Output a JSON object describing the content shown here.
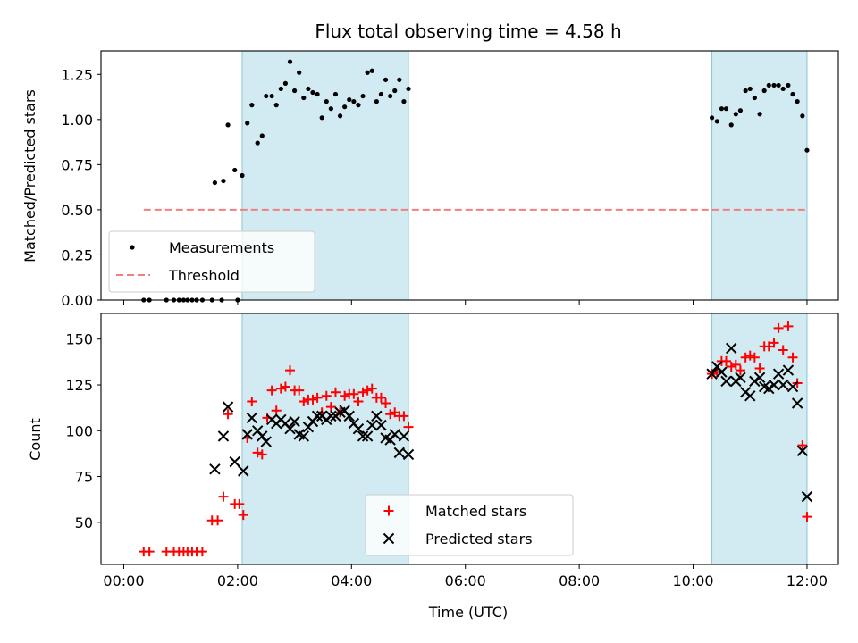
{
  "chart_data": {
    "title": "Flux total observing time = 4.58 h",
    "xlabel": "Time (UTC)",
    "xlim_hours": [
      -0.4,
      12.55
    ],
    "xticks": [
      {
        "value": 0,
        "label": "00:00"
      },
      {
        "value": 2,
        "label": "02:00"
      },
      {
        "value": 4,
        "label": "04:00"
      },
      {
        "value": 6,
        "label": "06:00"
      },
      {
        "value": 8,
        "label": "08:00"
      },
      {
        "value": 10,
        "label": "10:00"
      },
      {
        "value": 12,
        "label": "12:00"
      }
    ],
    "shaded_spans_hours": [
      [
        2.08,
        5.0
      ],
      [
        10.33,
        12.0
      ]
    ],
    "shade_color": "#add8e6",
    "panels": [
      {
        "type": "scatter",
        "ylabel": "Matched/Predicted stars",
        "ylim": [
          0,
          1.38
        ],
        "yticks": [
          {
            "value": 0,
            "label": "0.00"
          },
          {
            "value": 0.25,
            "label": "0.25"
          },
          {
            "value": 0.5,
            "label": "0.50"
          },
          {
            "value": 0.75,
            "label": "0.75"
          },
          {
            "value": 1.0,
            "label": "1.00"
          },
          {
            "value": 1.25,
            "label": "1.25"
          }
        ],
        "legend": {
          "position": "lower-left",
          "entries": [
            "Measurements",
            "Threshold"
          ]
        },
        "threshold": {
          "name": "Threshold",
          "y": 0.5,
          "x_range": [
            0.35,
            12.0
          ],
          "color": "#f08080"
        },
        "series": [
          {
            "name": "Measurements",
            "marker": "dot",
            "color": "#000000",
            "points": [
              [
                0.35,
                0
              ],
              [
                0.45,
                0
              ],
              [
                0.75,
                0
              ],
              [
                0.88,
                0
              ],
              [
                0.97,
                0
              ],
              [
                1.05,
                0
              ],
              [
                1.12,
                0
              ],
              [
                1.2,
                0
              ],
              [
                1.28,
                0
              ],
              [
                1.38,
                0
              ],
              [
                1.55,
                0
              ],
              [
                1.72,
                0
              ],
              [
                2.0,
                0
              ],
              [
                1.6,
                0.65
              ],
              [
                1.75,
                0.66
              ],
              [
                1.83,
                0.97
              ],
              [
                1.95,
                0.72
              ],
              [
                2.08,
                0.69
              ],
              [
                2.17,
                0.98
              ],
              [
                2.25,
                1.08
              ],
              [
                2.35,
                0.87
              ],
              [
                2.43,
                0.91
              ],
              [
                2.5,
                1.13
              ],
              [
                2.6,
                1.13
              ],
              [
                2.68,
                1.08
              ],
              [
                2.76,
                1.17
              ],
              [
                2.84,
                1.2
              ],
              [
                2.92,
                1.32
              ],
              [
                3.0,
                1.16
              ],
              [
                3.08,
                1.26
              ],
              [
                3.16,
                1.12
              ],
              [
                3.24,
                1.17
              ],
              [
                3.32,
                1.15
              ],
              [
                3.4,
                1.14
              ],
              [
                3.48,
                1.01
              ],
              [
                3.56,
                1.1
              ],
              [
                3.64,
                1.06
              ],
              [
                3.72,
                1.14
              ],
              [
                3.8,
                1.02
              ],
              [
                3.88,
                1.07
              ],
              [
                3.96,
                1.11
              ],
              [
                4.04,
                1.1
              ],
              [
                4.12,
                1.08
              ],
              [
                4.2,
                1.13
              ],
              [
                4.28,
                1.26
              ],
              [
                4.36,
                1.27
              ],
              [
                4.44,
                1.1
              ],
              [
                4.52,
                1.14
              ],
              [
                4.6,
                1.22
              ],
              [
                4.68,
                1.13
              ],
              [
                4.76,
                1.16
              ],
              [
                4.84,
                1.22
              ],
              [
                4.92,
                1.1
              ],
              [
                5.0,
                1.17
              ],
              [
                10.33,
                1.01
              ],
              [
                10.42,
                0.99
              ],
              [
                10.5,
                1.06
              ],
              [
                10.58,
                1.06
              ],
              [
                10.67,
                0.97
              ],
              [
                10.75,
                1.03
              ],
              [
                10.83,
                1.05
              ],
              [
                10.92,
                1.16
              ],
              [
                11.0,
                1.17
              ],
              [
                11.08,
                1.12
              ],
              [
                11.17,
                1.03
              ],
              [
                11.25,
                1.16
              ],
              [
                11.33,
                1.19
              ],
              [
                11.42,
                1.19
              ],
              [
                11.5,
                1.19
              ],
              [
                11.58,
                1.17
              ],
              [
                11.67,
                1.19
              ],
              [
                11.75,
                1.14
              ],
              [
                11.83,
                1.1
              ],
              [
                11.92,
                1.02
              ],
              [
                12.0,
                0.83
              ]
            ]
          }
        ]
      },
      {
        "type": "scatter",
        "ylabel": "Count",
        "ylim": [
          27,
          164
        ],
        "yticks": [
          {
            "value": 50,
            "label": "50"
          },
          {
            "value": 75,
            "label": "75"
          },
          {
            "value": 100,
            "label": "100"
          },
          {
            "value": 125,
            "label": "125"
          },
          {
            "value": 150,
            "label": "150"
          }
        ],
        "legend": {
          "position": "lower-center",
          "entries": [
            "Matched stars",
            "Predicted stars"
          ]
        },
        "series": [
          {
            "name": "Matched stars",
            "marker": "plus",
            "color": "#ff0000",
            "points": [
              [
                0.35,
                34
              ],
              [
                0.45,
                34
              ],
              [
                0.75,
                34
              ],
              [
                0.88,
                34
              ],
              [
                0.97,
                34
              ],
              [
                1.05,
                34
              ],
              [
                1.12,
                34
              ],
              [
                1.2,
                34
              ],
              [
                1.28,
                34
              ],
              [
                1.38,
                34
              ],
              [
                1.55,
                51
              ],
              [
                1.65,
                51
              ],
              [
                1.75,
                64
              ],
              [
                1.83,
                109
              ],
              [
                1.95,
                60
              ],
              [
                2.03,
                60
              ],
              [
                2.1,
                54
              ],
              [
                2.17,
                96
              ],
              [
                2.25,
                116
              ],
              [
                2.35,
                88
              ],
              [
                2.43,
                87
              ],
              [
                2.52,
                107
              ],
              [
                2.6,
                122
              ],
              [
                2.68,
                111
              ],
              [
                2.76,
                123
              ],
              [
                2.84,
                124
              ],
              [
                2.92,
                133
              ],
              [
                3.0,
                122
              ],
              [
                3.08,
                122
              ],
              [
                3.16,
                116
              ],
              [
                3.24,
                117
              ],
              [
                3.32,
                117
              ],
              [
                3.4,
                118
              ],
              [
                3.48,
                110
              ],
              [
                3.56,
                119
              ],
              [
                3.64,
                113
              ],
              [
                3.72,
                121
              ],
              [
                3.8,
                110
              ],
              [
                3.88,
                119
              ],
              [
                3.96,
                120
              ],
              [
                4.04,
                120
              ],
              [
                4.12,
                116
              ],
              [
                4.2,
                121
              ],
              [
                4.28,
                122
              ],
              [
                4.36,
                123
              ],
              [
                4.44,
                118
              ],
              [
                4.52,
                118
              ],
              [
                4.6,
                115
              ],
              [
                4.68,
                109
              ],
              [
                4.76,
                110
              ],
              [
                4.84,
                108
              ],
              [
                4.92,
                108
              ],
              [
                5.0,
                102
              ],
              [
                10.33,
                131
              ],
              [
                10.42,
                132
              ],
              [
                10.5,
                138
              ],
              [
                10.58,
                138
              ],
              [
                10.67,
                135
              ],
              [
                10.75,
                136
              ],
              [
                10.83,
                133
              ],
              [
                10.92,
                140
              ],
              [
                11.0,
                141
              ],
              [
                11.08,
                140
              ],
              [
                11.17,
                134
              ],
              [
                11.25,
                146
              ],
              [
                11.33,
                146
              ],
              [
                11.42,
                148
              ],
              [
                11.5,
                156
              ],
              [
                11.58,
                144
              ],
              [
                11.67,
                157
              ],
              [
                11.75,
                140
              ],
              [
                11.83,
                126
              ],
              [
                11.92,
                92
              ],
              [
                12.0,
                53
              ]
            ]
          },
          {
            "name": "Predicted stars",
            "marker": "x",
            "color": "#000000",
            "points": [
              [
                1.6,
                79
              ],
              [
                1.75,
                97
              ],
              [
                1.83,
                113
              ],
              [
                1.95,
                83
              ],
              [
                2.1,
                78
              ],
              [
                2.17,
                98
              ],
              [
                2.25,
                107
              ],
              [
                2.35,
                100
              ],
              [
                2.43,
                97
              ],
              [
                2.5,
                94
              ],
              [
                2.6,
                106
              ],
              [
                2.68,
                104
              ],
              [
                2.76,
                106
              ],
              [
                2.84,
                104
              ],
              [
                2.92,
                101
              ],
              [
                3.0,
                105
              ],
              [
                3.08,
                98
              ],
              [
                3.16,
                97
              ],
              [
                3.24,
                102
              ],
              [
                3.32,
                105
              ],
              [
                3.4,
                108
              ],
              [
                3.48,
                108
              ],
              [
                3.56,
                106
              ],
              [
                3.64,
                108
              ],
              [
                3.72,
                108
              ],
              [
                3.8,
                110
              ],
              [
                3.88,
                111
              ],
              [
                3.96,
                108
              ],
              [
                4.04,
                104
              ],
              [
                4.12,
                101
              ],
              [
                4.2,
                97
              ],
              [
                4.28,
                97
              ],
              [
                4.36,
                103
              ],
              [
                4.44,
                108
              ],
              [
                4.52,
                103
              ],
              [
                4.6,
                96
              ],
              [
                4.68,
                95
              ],
              [
                4.76,
                98
              ],
              [
                4.84,
                88
              ],
              [
                4.92,
                97
              ],
              [
                5.0,
                87
              ],
              [
                10.33,
                131
              ],
              [
                10.42,
                135
              ],
              [
                10.5,
                132
              ],
              [
                10.58,
                127
              ],
              [
                10.67,
                145
              ],
              [
                10.75,
                127
              ],
              [
                10.83,
                129
              ],
              [
                10.92,
                121
              ],
              [
                11.0,
                119
              ],
              [
                11.08,
                127
              ],
              [
                11.17,
                129
              ],
              [
                11.25,
                124
              ],
              [
                11.33,
                123
              ],
              [
                11.42,
                125
              ],
              [
                11.5,
                131
              ],
              [
                11.58,
                125
              ],
              [
                11.67,
                133
              ],
              [
                11.75,
                124
              ],
              [
                11.83,
                115
              ],
              [
                11.92,
                89
              ],
              [
                12.0,
                64
              ]
            ]
          }
        ]
      }
    ]
  }
}
